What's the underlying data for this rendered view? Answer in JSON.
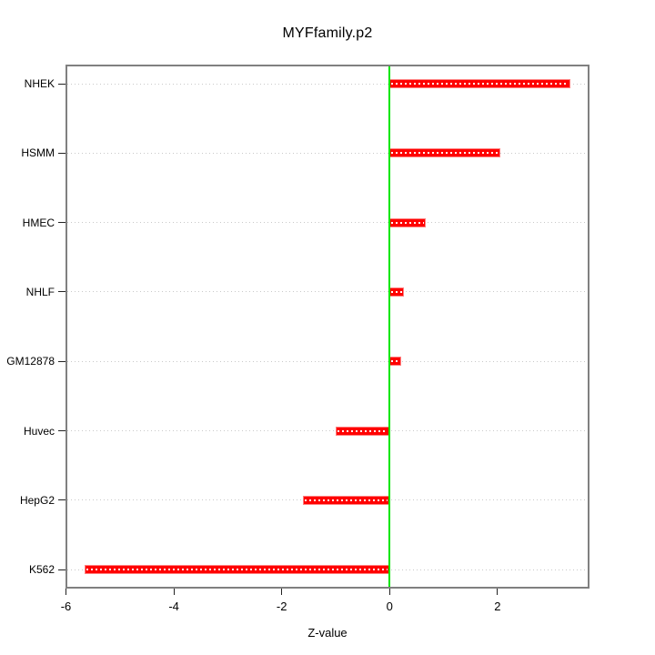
{
  "chart_data": {
    "type": "bar",
    "orientation": "horizontal",
    "title": "MYFfamily.p2",
    "xlabel": "Z-value",
    "ylabel": "",
    "categories": [
      "NHEK",
      "HSMM",
      "HMEC",
      "NHLF",
      "GM12878",
      "Huvec",
      "HepG2",
      "K562"
    ],
    "values": [
      3.35,
      2.05,
      0.67,
      0.26,
      0.22,
      -1.0,
      -1.6,
      -5.65
    ],
    "x_ticks": [
      -6,
      -4,
      -2,
      0,
      2
    ],
    "x_tick_labels": [
      "-6",
      "-4",
      "-2",
      "0",
      "2"
    ],
    "xlim": [
      -6.0,
      3.7
    ],
    "grid": true,
    "legend": "none",
    "zero_reference_line": 0,
    "colors": {
      "bar": "#ff0000",
      "bar_edge": "#ff7f7f",
      "bar_center_dash": "#ffffff",
      "zero_line": "#00e600",
      "gridline": "#c9c9c9",
      "plot_border": "#808080",
      "tick": "#222222",
      "text": "#000000",
      "background": "#ffffff"
    }
  }
}
